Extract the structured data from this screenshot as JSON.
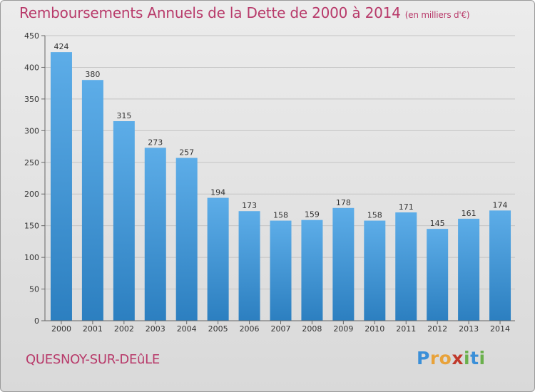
{
  "chart_data": {
    "type": "bar",
    "title": "Remboursements Annuels de la Dette de 2000 à 2014",
    "unit_label": "(en milliers d'€)",
    "categories": [
      "2000",
      "2001",
      "2002",
      "2003",
      "2004",
      "2005",
      "2006",
      "2007",
      "2008",
      "2009",
      "2010",
      "2011",
      "2012",
      "2013",
      "2014"
    ],
    "values": [
      424,
      380,
      315,
      273,
      257,
      194,
      173,
      158,
      159,
      178,
      158,
      171,
      145,
      161,
      174
    ],
    "ylim": [
      0,
      450
    ],
    "yticks": [
      0,
      50,
      100,
      150,
      200,
      250,
      300,
      350,
      400,
      450
    ],
    "xlabel": "",
    "ylabel": "",
    "grid": true,
    "bar_color_top": "#5dade8",
    "bar_color_bottom": "#2c7fc0"
  },
  "commune": "QUESNOY-SUR-DEûLE",
  "brand": {
    "letters": [
      "P",
      "r",
      "o",
      "x",
      "i",
      "t",
      "i"
    ],
    "colors": [
      "#3a8fd8",
      "#e8a23a",
      "#e8a23a",
      "#c0392b",
      "#6ab04c",
      "#3a8fd8",
      "#6ab04c"
    ]
  }
}
